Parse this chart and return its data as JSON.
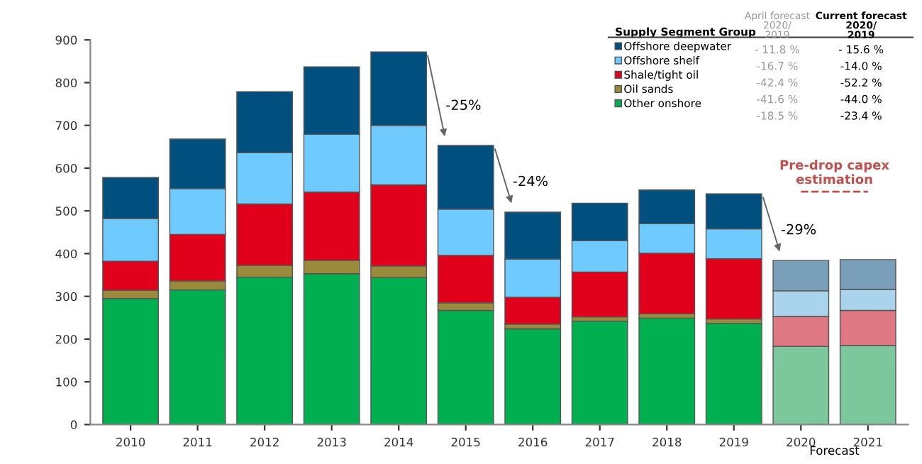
{
  "chart_data": {
    "type": "bar",
    "stacked": true,
    "categories": [
      "2010",
      "2011",
      "2012",
      "2013",
      "2014",
      "2015",
      "2016",
      "2017",
      "2018",
      "2019",
      "2020",
      "2021"
    ],
    "series": [
      {
        "name": "Other onshore",
        "color": "#00b050",
        "colors": [
          "#00b050",
          "#00b050",
          "#00b050",
          "#00b050",
          "#00b050",
          "#00b050",
          "#00b050",
          "#00b050",
          "#00b050",
          "#00b050",
          "#7cc79c",
          "#7cc79c"
        ],
        "values": [
          295,
          315,
          345,
          353,
          344,
          267,
          224,
          242,
          249,
          237,
          183,
          185
        ]
      },
      {
        "name": "Oil sands",
        "color": "#9a8a3c",
        "colors": [
          "#9a8a3c",
          "#9a8a3c",
          "#9a8a3c",
          "#9a8a3c",
          "#9a8a3c",
          "#9a8a3c",
          "#9a8a3c",
          "#9a8a3c",
          "#9a8a3c",
          "#9a8a3c",
          "#c4b98a",
          "#c4b98a"
        ],
        "values": [
          19,
          21,
          27,
          31,
          27,
          18,
          11,
          10,
          10,
          10,
          0,
          0
        ]
      },
      {
        "name": "Shale/tight oil",
        "color": "#e0001b",
        "colors": [
          "#e0001b",
          "#e0001b",
          "#e0001b",
          "#e0001b",
          "#e0001b",
          "#e0001b",
          "#e0001b",
          "#e0001b",
          "#e0001b",
          "#e0001b",
          "#de7882",
          "#de7882"
        ],
        "values": [
          68,
          109,
          144,
          160,
          190,
          111,
          63,
          105,
          142,
          141,
          70,
          82
        ]
      },
      {
        "name": "Offshore shelf",
        "color": "#6fcbff",
        "colors": [
          "#6fcbff",
          "#6fcbff",
          "#6fcbff",
          "#6fcbff",
          "#6fcbff",
          "#6fcbff",
          "#6fcbff",
          "#6fcbff",
          "#6fcbff",
          "#6fcbff",
          "#a9d4ec",
          "#a9d4ec"
        ],
        "values": [
          100,
          107,
          120,
          135,
          139,
          108,
          89,
          73,
          69,
          70,
          60,
          49
        ]
      },
      {
        "name": "Offshore deepwater",
        "color": "#00507f",
        "colors": [
          "#00507f",
          "#00507f",
          "#00507f",
          "#00507f",
          "#00507f",
          "#00507f",
          "#00507f",
          "#00507f",
          "#00507f",
          "#00507f",
          "#7a9fb8",
          "#7a9fb8"
        ],
        "values": [
          96,
          116,
          143,
          158,
          172,
          149,
          110,
          88,
          79,
          82,
          71,
          70
        ]
      },
      {
        "name": "Pre-drop capex estimation",
        "type": "line",
        "color": "#c0504d",
        "line_style": "dashed",
        "marker": "none",
        "values": [
          null,
          null,
          null,
          null,
          null,
          null,
          null,
          null,
          null,
          null,
          545,
          545
        ]
      }
    ],
    "ylim": [
      0,
      900
    ],
    "yticks": [
      0,
      100,
      200,
      300,
      400,
      500,
      600,
      700,
      800,
      900
    ],
    "grid": false,
    "legend": "top right",
    "legend_title": "Supply Segment Group",
    "annotations": [
      "April forecast\n2020/\n2019",
      "Current forecast\n2020/\n2019",
      "- 11.8 %",
      "- 15.6 %",
      "-16.7 %",
      "-14.0 %",
      "-42.4 %",
      "-52.2 %",
      "-41.6 %",
      "-44.0 %",
      "-18.5 %",
      "-23.4 %",
      "Forecast",
      {
        "text": "-25%",
        "x": "2015",
        "y": 653
      },
      {
        "text": "-24%",
        "x": "2016",
        "y": 497
      },
      {
        "text": "-29%",
        "x": "2020",
        "y": 384
      }
    ]
  }
}
